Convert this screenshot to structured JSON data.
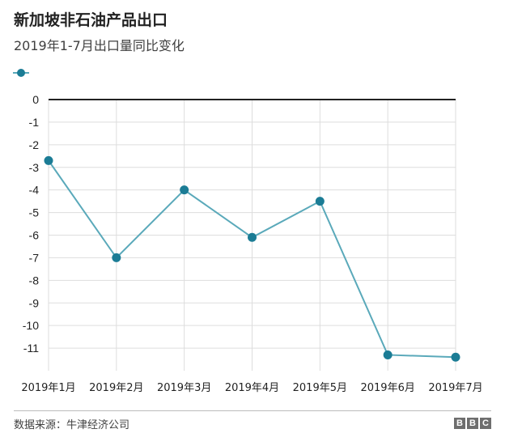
{
  "chart_data": {
    "type": "line",
    "title": "新加坡非石油产品出口",
    "subtitle": "2019年1-7月出口量同比变化",
    "categories": [
      "2019年1月",
      "2019年2月",
      "2019年3月",
      "2019年4月",
      "2019年5月",
      "2019年6月",
      "2019年7月"
    ],
    "series": [
      {
        "values": [
          -2.7,
          -7.0,
          -4.0,
          -6.1,
          -4.5,
          -11.3,
          -11.4
        ]
      }
    ],
    "ylim": [
      -12,
      0
    ],
    "yticks": [
      0,
      -1,
      -2,
      -3,
      -4,
      -5,
      -6,
      -7,
      -8,
      -9,
      -10,
      -11
    ],
    "grid": true,
    "colors": {
      "line": "#5aa9ba",
      "marker": "#1b7c95"
    }
  },
  "footer": {
    "source": "数据来源：牛津经济公司",
    "logo": [
      "B",
      "B",
      "C"
    ]
  }
}
